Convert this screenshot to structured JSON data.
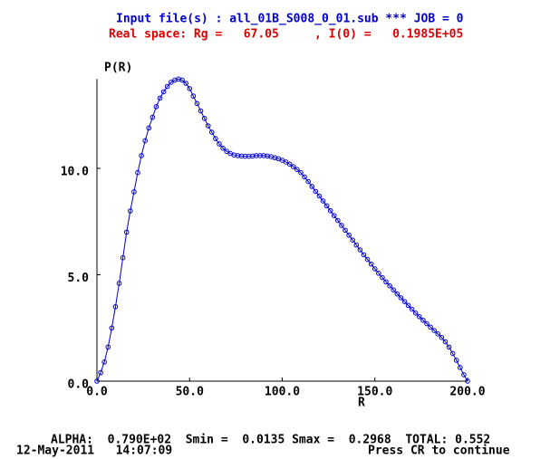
{
  "chart_data": {
    "type": "line",
    "header": "Input file(s) : all_01B_S008_0_01.sub *** JOB = 0",
    "subtitle": "Real space: Rg =   67.05     , I(0) =   0.1985E+05",
    "ylabel": "P(R)",
    "xlabel": "R",
    "footer": "ALPHA:  0.790E+02  Smin =  0.0135 Smax =  0.2968  TOTAL: 0.552",
    "date": "12-May-2011   14:07:09",
    "prompt": "Press CR to continue",
    "xlim": [
      0,
      200
    ],
    "ylim": [
      0,
      14.2
    ],
    "xticks": [
      {
        "value": 0,
        "label": "0.0"
      },
      {
        "value": 50,
        "label": "50.0"
      },
      {
        "value": 100,
        "label": "100.0"
      },
      {
        "value": 150,
        "label": "150.0"
      },
      {
        "value": 200,
        "label": "200.0"
      }
    ],
    "yticks": [
      {
        "value": 0,
        "label": "0.0"
      },
      {
        "value": 5,
        "label": "5.0"
      },
      {
        "value": 10,
        "label": "10.0"
      }
    ],
    "x": [
      0,
      2,
      4,
      6,
      8,
      10,
      12,
      14,
      16,
      18,
      20,
      22,
      24,
      26,
      28,
      30,
      32,
      34,
      36,
      38,
      40,
      42,
      44,
      46,
      48,
      50,
      52,
      54,
      56,
      58,
      60,
      62,
      64,
      66,
      68,
      70,
      72,
      74,
      76,
      78,
      80,
      82,
      84,
      86,
      88,
      90,
      92,
      94,
      96,
      98,
      100,
      102,
      104,
      106,
      108,
      110,
      112,
      114,
      116,
      118,
      120,
      122,
      124,
      126,
      128,
      130,
      132,
      134,
      136,
      138,
      140,
      142,
      144,
      146,
      148,
      150,
      152,
      154,
      156,
      158,
      160,
      162,
      164,
      166,
      168,
      170,
      172,
      174,
      176,
      178,
      180,
      182,
      184,
      186,
      188,
      190,
      192,
      194,
      196,
      198,
      200
    ],
    "series": [
      {
        "color": "#0000cc",
        "values": [
          0,
          0.4,
          0.9,
          1.6,
          2.5,
          3.5,
          4.6,
          5.8,
          7.0,
          8.0,
          8.9,
          9.8,
          10.6,
          11.3,
          11.9,
          12.4,
          12.9,
          13.3,
          13.6,
          13.85,
          14.05,
          14.15,
          14.2,
          14.15,
          14.0,
          13.75,
          13.4,
          13.05,
          12.7,
          12.35,
          12.0,
          11.7,
          11.4,
          11.15,
          10.95,
          10.8,
          10.7,
          10.63,
          10.6,
          10.58,
          10.57,
          10.57,
          10.58,
          10.6,
          10.6,
          10.6,
          10.58,
          10.55,
          10.5,
          10.45,
          10.38,
          10.3,
          10.2,
          10.08,
          9.95,
          9.8,
          9.6,
          9.38,
          9.15,
          8.92,
          8.7,
          8.47,
          8.24,
          8.01,
          7.78,
          7.55,
          7.32,
          7.09,
          6.86,
          6.63,
          6.4,
          6.17,
          5.94,
          5.72,
          5.5,
          5.28,
          5.07,
          4.87,
          4.67,
          4.48,
          4.29,
          4.1,
          3.92,
          3.74,
          3.56,
          3.38,
          3.2,
          3.03,
          2.86,
          2.7,
          2.54,
          2.38,
          2.22,
          2.05,
          1.85,
          1.6,
          1.3,
          0.98,
          0.64,
          0.3,
          0
        ]
      }
    ]
  }
}
